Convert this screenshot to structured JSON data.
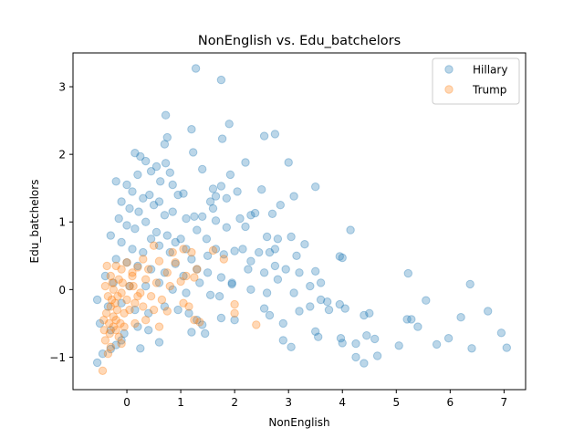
{
  "chart_data": {
    "type": "scatter",
    "title": "NonEnglish vs. Edu_batchelors",
    "xlabel": "NonEnglish",
    "ylabel": "Edu_batchelors",
    "xlim": [
      -1.0,
      7.4
    ],
    "ylim": [
      -1.48,
      3.5
    ],
    "x_ticks": [
      0,
      1,
      2,
      3,
      4,
      5,
      6,
      7
    ],
    "x_tick_labels": [
      "0",
      "1",
      "2",
      "3",
      "4",
      "5",
      "6",
      "7"
    ],
    "y_ticks": [
      -1,
      0,
      1,
      2,
      3
    ],
    "y_tick_labels": [
      "−1",
      "0",
      "1",
      "2",
      "3"
    ],
    "grid": false,
    "legend_position": "top-right",
    "marker_alpha": 0.3,
    "series": [
      {
        "name": "Hillary",
        "color": "#1f77b4",
        "points": [
          [
            1.28,
            3.27
          ],
          [
            1.75,
            3.1
          ],
          [
            0.72,
            2.58
          ],
          [
            1.2,
            2.37
          ],
          [
            1.9,
            2.45
          ],
          [
            2.75,
            2.3
          ],
          [
            2.55,
            2.27
          ],
          [
            0.75,
            2.25
          ],
          [
            0.7,
            2.15
          ],
          [
            1.77,
            2.23
          ],
          [
            1.23,
            2.03
          ],
          [
            0.15,
            2.02
          ],
          [
            0.25,
            1.97
          ],
          [
            0.35,
            1.9
          ],
          [
            0.72,
            1.87
          ],
          [
            2.2,
            1.88
          ],
          [
            3.0,
            1.88
          ],
          [
            0.55,
            1.82
          ],
          [
            0.8,
            1.73
          ],
          [
            1.4,
            1.78
          ],
          [
            1.92,
            1.7
          ],
          [
            0.2,
            1.7
          ],
          [
            0.45,
            1.75
          ],
          [
            0.62,
            1.6
          ],
          [
            0.85,
            1.55
          ],
          [
            1.6,
            1.49
          ],
          [
            1.75,
            1.53
          ],
          [
            2.5,
            1.48
          ],
          [
            3.1,
            1.38
          ],
          [
            3.5,
            1.52
          ],
          [
            -0.2,
            1.6
          ],
          [
            0.0,
            1.55
          ],
          [
            0.1,
            1.45
          ],
          [
            0.3,
            1.35
          ],
          [
            0.42,
            1.4
          ],
          [
            0.6,
            1.3
          ],
          [
            0.95,
            1.4
          ],
          [
            1.05,
            1.42
          ],
          [
            1.55,
            1.3
          ],
          [
            1.65,
            1.38
          ],
          [
            1.85,
            1.35
          ],
          [
            2.05,
            1.45
          ],
          [
            -0.1,
            1.3
          ],
          [
            0.05,
            1.2
          ],
          [
            0.22,
            1.15
          ],
          [
            0.5,
            1.25
          ],
          [
            0.7,
            1.1
          ],
          [
            0.85,
            1.15
          ],
          [
            1.1,
            1.05
          ],
          [
            1.25,
            1.08
          ],
          [
            1.4,
            1.08
          ],
          [
            1.6,
            1.2
          ],
          [
            1.65,
            1.02
          ],
          [
            2.1,
            1.05
          ],
          [
            2.3,
            1.1
          ],
          [
            2.38,
            1.13
          ],
          [
            2.7,
            1.12
          ],
          [
            2.85,
            1.25
          ],
          [
            -0.15,
            1.05
          ],
          [
            0.0,
            0.95
          ],
          [
            0.15,
            0.9
          ],
          [
            0.35,
            1.0
          ],
          [
            0.55,
            0.85
          ],
          [
            0.75,
            0.8
          ],
          [
            0.9,
            0.7
          ],
          [
            1.0,
            0.75
          ],
          [
            1.3,
            0.88
          ],
          [
            1.48,
            0.75
          ],
          [
            1.85,
            0.92
          ],
          [
            2.2,
            0.93
          ],
          [
            2.6,
            0.78
          ],
          [
            2.8,
            0.75
          ],
          [
            3.05,
            0.78
          ],
          [
            3.3,
            0.67
          ],
          [
            3.95,
            0.49
          ],
          [
            4.0,
            0.47
          ],
          [
            4.15,
            0.88
          ],
          [
            -0.3,
            0.8
          ],
          [
            -0.1,
            0.7
          ],
          [
            0.1,
            0.6
          ],
          [
            0.3,
            0.55
          ],
          [
            0.45,
            0.75
          ],
          [
            0.6,
            0.65
          ],
          [
            0.8,
            0.55
          ],
          [
            1.1,
            0.6
          ],
          [
            1.2,
            0.45
          ],
          [
            1.5,
            0.5
          ],
          [
            1.65,
            0.6
          ],
          [
            1.8,
            0.52
          ],
          [
            2.0,
            0.57
          ],
          [
            2.15,
            0.6
          ],
          [
            2.3,
            0.42
          ],
          [
            2.45,
            0.55
          ],
          [
            2.65,
            0.55
          ],
          [
            2.75,
            0.6
          ],
          [
            3.15,
            0.5
          ],
          [
            -0.2,
            0.45
          ],
          [
            0.0,
            0.4
          ],
          [
            0.2,
            0.35
          ],
          [
            0.45,
            0.3
          ],
          [
            0.7,
            0.25
          ],
          [
            0.9,
            0.38
          ],
          [
            1.05,
            0.2
          ],
          [
            1.3,
            0.3
          ],
          [
            1.5,
            0.25
          ],
          [
            1.75,
            0.18
          ],
          [
            1.95,
            0.1
          ],
          [
            2.25,
            0.3
          ],
          [
            2.55,
            0.25
          ],
          [
            2.75,
            0.35
          ],
          [
            2.95,
            0.3
          ],
          [
            3.2,
            0.25
          ],
          [
            3.5,
            0.27
          ],
          [
            -0.4,
            0.2
          ],
          [
            -0.25,
            0.1
          ],
          [
            0.05,
            0.05
          ],
          [
            0.35,
            0.05
          ],
          [
            0.6,
            0.1
          ],
          [
            0.85,
            0.0
          ],
          [
            1.1,
            -0.05
          ],
          [
            1.35,
            0.1
          ],
          [
            1.55,
            -0.08
          ],
          [
            1.72,
            -0.1
          ],
          [
            1.95,
            0.08
          ],
          [
            2.3,
            0.0
          ],
          [
            2.6,
            -0.05
          ],
          [
            2.8,
            0.15
          ],
          [
            3.1,
            -0.05
          ],
          [
            3.4,
            0.05
          ],
          [
            3.6,
            0.1
          ],
          [
            3.72,
            -0.18
          ],
          [
            3.95,
            -0.22
          ],
          [
            4.05,
            -0.28
          ],
          [
            -0.55,
            -0.15
          ],
          [
            -0.35,
            -0.25
          ],
          [
            -0.1,
            -0.2
          ],
          [
            0.15,
            -0.3
          ],
          [
            0.4,
            -0.35
          ],
          [
            0.7,
            -0.25
          ],
          [
            0.95,
            -0.3
          ],
          [
            1.15,
            -0.35
          ],
          [
            1.3,
            -0.45
          ],
          [
            1.4,
            -0.52
          ],
          [
            2.0,
            -0.45
          ],
          [
            2.55,
            -0.28
          ],
          [
            2.65,
            -0.38
          ],
          [
            2.9,
            -0.5
          ],
          [
            3.2,
            -0.32
          ],
          [
            3.4,
            -0.25
          ],
          [
            3.6,
            -0.15
          ],
          [
            3.75,
            -0.3
          ],
          [
            4.4,
            -0.38
          ],
          [
            4.5,
            -0.35
          ],
          [
            5.2,
            -0.44
          ],
          [
            5.28,
            -0.44
          ],
          [
            5.4,
            -0.55
          ],
          [
            5.22,
            0.24
          ],
          [
            5.55,
            -0.16
          ],
          [
            6.2,
            -0.41
          ],
          [
            6.37,
            0.08
          ],
          [
            6.7,
            -0.32
          ],
          [
            -0.5,
            -0.5
          ],
          [
            -0.3,
            -0.6
          ],
          [
            -0.1,
            -0.75
          ],
          [
            0.2,
            -0.55
          ],
          [
            0.4,
            -0.6
          ],
          [
            0.6,
            -0.78
          ],
          [
            1.2,
            -0.63
          ],
          [
            1.45,
            -0.65
          ],
          [
            1.75,
            -0.42
          ],
          [
            2.9,
            -0.75
          ],
          [
            3.05,
            -0.85
          ],
          [
            3.5,
            -0.62
          ],
          [
            3.55,
            -0.7
          ],
          [
            3.97,
            -0.72
          ],
          [
            4.0,
            -0.79
          ],
          [
            4.25,
            -0.8
          ],
          [
            4.45,
            -0.68
          ],
          [
            4.6,
            -0.73
          ],
          [
            5.05,
            -0.83
          ],
          [
            5.75,
            -0.81
          ],
          [
            5.97,
            -0.72
          ],
          [
            6.95,
            -0.64
          ],
          [
            7.05,
            -0.86
          ],
          [
            6.4,
            -0.87
          ],
          [
            4.25,
            -1.0
          ],
          [
            4.4,
            -1.09
          ],
          [
            4.65,
            -0.98
          ],
          [
            0.25,
            -0.87
          ],
          [
            -0.55,
            -1.08
          ],
          [
            -0.45,
            -0.95
          ],
          [
            -0.3,
            -0.88
          ],
          [
            -0.2,
            -0.82
          ],
          [
            -0.05,
            -0.65
          ]
        ]
      },
      {
        "name": "Trump",
        "color": "#ff7f0e",
        "points": [
          [
            0.5,
            0.65
          ],
          [
            0.85,
            0.55
          ],
          [
            1.05,
            0.6
          ],
          [
            1.2,
            0.55
          ],
          [
            1.6,
            0.58
          ],
          [
            0.3,
            0.45
          ],
          [
            0.6,
            0.42
          ],
          [
            0.9,
            0.4
          ],
          [
            1.3,
            0.3
          ],
          [
            1.8,
            0.45
          ],
          [
            0.2,
            0.33
          ],
          [
            0.4,
            0.3
          ],
          [
            0.75,
            0.25
          ],
          [
            1.1,
            0.2
          ],
          [
            1.25,
            0.18
          ],
          [
            0.1,
            0.2
          ],
          [
            0.35,
            0.15
          ],
          [
            0.55,
            0.1
          ],
          [
            0.8,
            0.05
          ],
          [
            1.0,
            0.12
          ],
          [
            0.05,
            0.05
          ],
          [
            0.25,
            -0.05
          ],
          [
            0.45,
            -0.1
          ],
          [
            0.65,
            -0.15
          ],
          [
            1.05,
            -0.2
          ],
          [
            1.15,
            -0.25
          ],
          [
            2.0,
            -0.22
          ],
          [
            0.15,
            -0.2
          ],
          [
            0.3,
            -0.25
          ],
          [
            0.5,
            -0.3
          ],
          [
            0.75,
            -0.32
          ],
          [
            1.25,
            -0.45
          ],
          [
            1.35,
            -0.48
          ],
          [
            2.0,
            -0.35
          ],
          [
            2.4,
            -0.52
          ],
          [
            0.6,
            -0.55
          ],
          [
            0.35,
            -0.45
          ],
          [
            0.15,
            -0.5
          ],
          [
            -0.05,
            -0.55
          ],
          [
            -0.15,
            -0.7
          ],
          [
            -0.3,
            -0.85
          ],
          [
            -0.4,
            -0.75
          ],
          [
            -0.45,
            -1.2
          ],
          [
            -0.35,
            -0.95
          ],
          [
            -0.2,
            -0.6
          ],
          [
            -0.25,
            -0.4
          ],
          [
            -0.3,
            -0.25
          ],
          [
            -0.35,
            -0.1
          ],
          [
            -0.4,
            0.05
          ],
          [
            -0.3,
            0.2
          ],
          [
            -0.2,
            0.35
          ],
          [
            -0.1,
            0.3
          ],
          [
            0.0,
            0.4
          ],
          [
            0.1,
            0.25
          ],
          [
            -0.15,
            0.15
          ],
          [
            -0.25,
            0.0
          ],
          [
            -0.1,
            -0.05
          ],
          [
            0.0,
            -0.15
          ],
          [
            -0.05,
            -0.35
          ],
          [
            -0.2,
            -0.45
          ],
          [
            -0.1,
            -0.8
          ],
          [
            -0.25,
            -0.55
          ],
          [
            -0.32,
            -0.65
          ],
          [
            -0.38,
            -0.35
          ],
          [
            -0.28,
            -0.15
          ],
          [
            -0.18,
            -0.3
          ],
          [
            -0.08,
            0.1
          ],
          [
            0.05,
            -0.3
          ],
          [
            -0.12,
            -0.5
          ],
          [
            -0.22,
            -0.2
          ],
          [
            -0.33,
            -0.5
          ],
          [
            -0.42,
            -0.6
          ],
          [
            -0.27,
            0.1
          ],
          [
            -0.17,
            -0.1
          ],
          [
            -0.37,
            0.35
          ],
          [
            -0.43,
            -0.45
          ],
          [
            0.12,
            0.05
          ],
          [
            0.2,
            -0.1
          ]
        ]
      }
    ]
  }
}
